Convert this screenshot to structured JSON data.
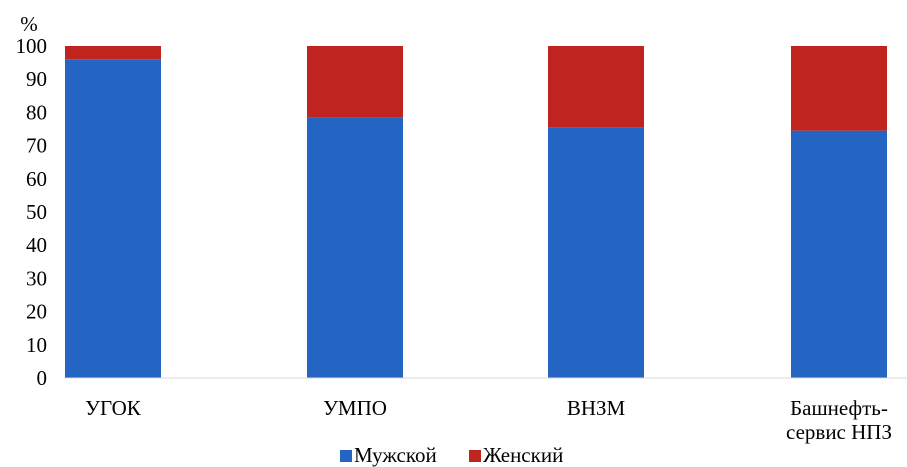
{
  "chart_data": {
    "type": "bar",
    "stacked": true,
    "title": "",
    "xlabel": "",
    "ylabel": "%",
    "ylim": [
      0,
      100
    ],
    "yticks": [
      "0",
      "10",
      "20",
      "30",
      "40",
      "50",
      "60",
      "70",
      "80",
      "90",
      "100"
    ],
    "categories": [
      "УГОК",
      "УМПО",
      "ВНЗМ",
      "Башнефть-сервис НПЗ"
    ],
    "category_lines": [
      [
        "УГОК"
      ],
      [
        "УМПО"
      ],
      [
        "ВНЗМ"
      ],
      [
        "Башнефть-",
        "сервис НПЗ"
      ]
    ],
    "series": [
      {
        "name": "Мужской",
        "color": "#2464c3",
        "values": [
          96,
          78.5,
          75.5,
          74.5
        ]
      },
      {
        "name": "Женский",
        "color": "#c0241f",
        "values": [
          4,
          21.5,
          24.5,
          25.5
        ]
      }
    ],
    "legend_position": "bottom",
    "grid": false
  }
}
